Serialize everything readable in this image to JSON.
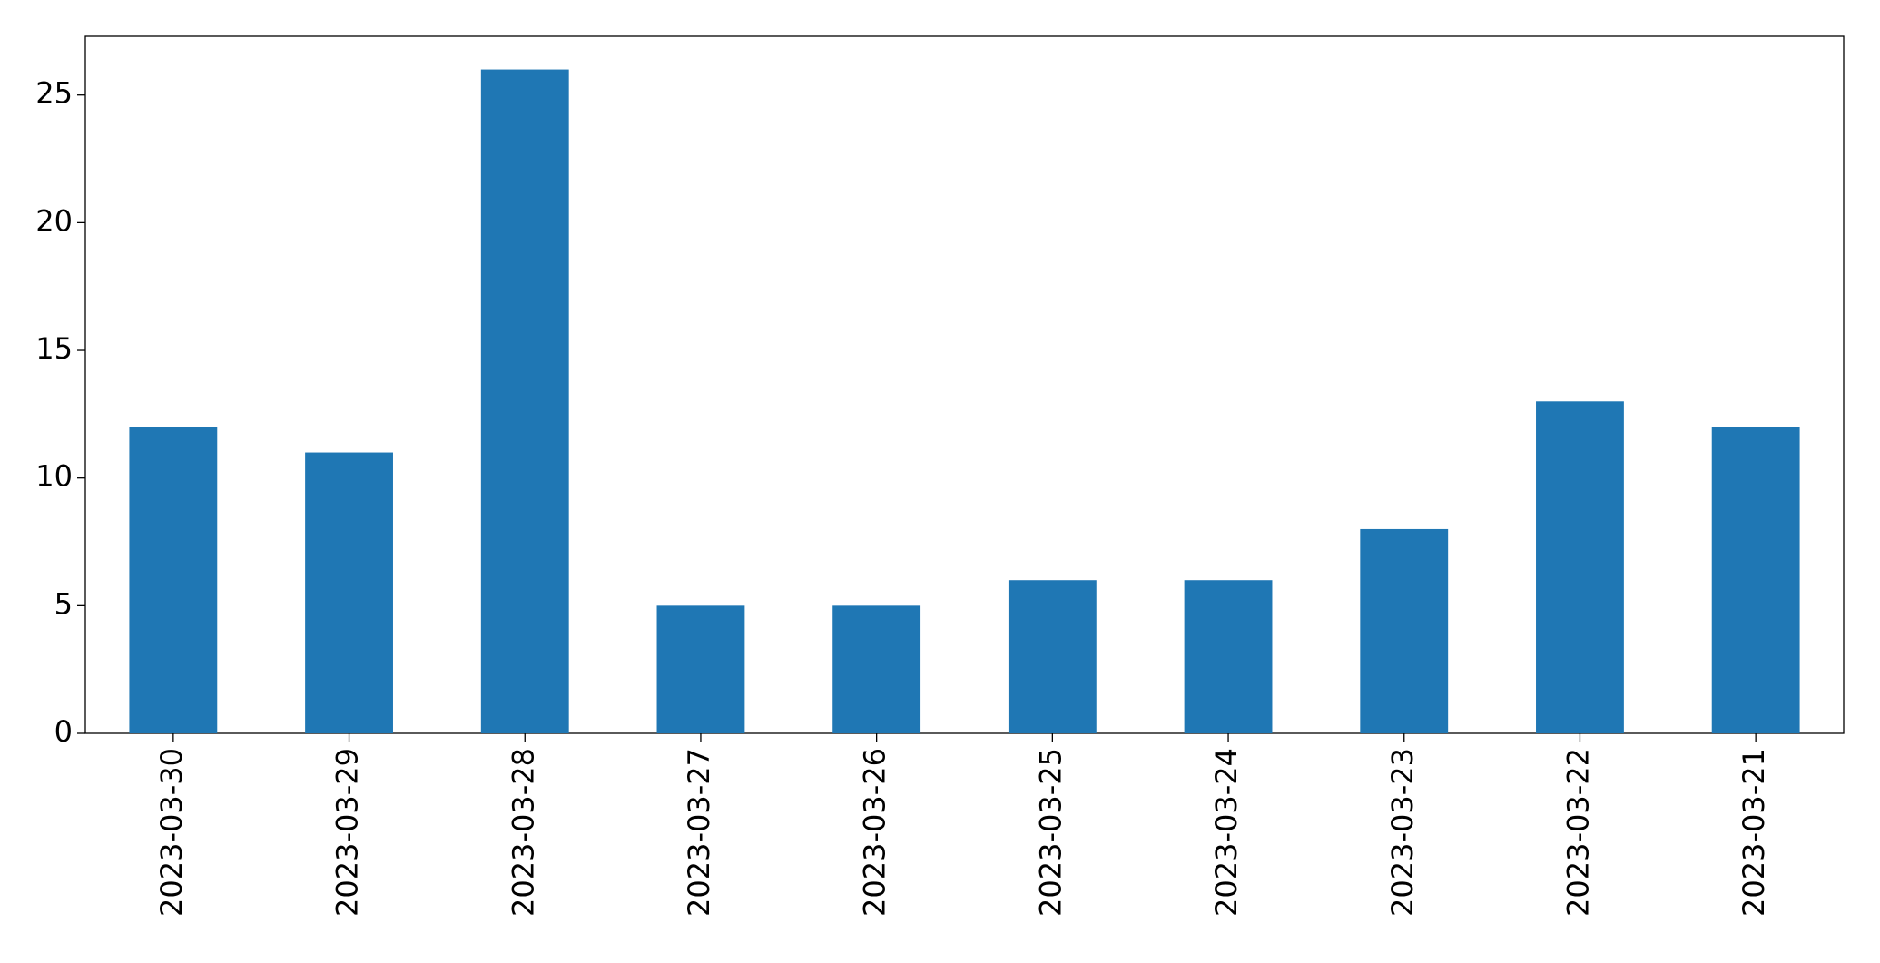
{
  "chart_data": {
    "type": "bar",
    "categories": [
      "2023-03-30",
      "2023-03-29",
      "2023-03-28",
      "2023-03-27",
      "2023-03-26",
      "2023-03-25",
      "2023-03-24",
      "2023-03-23",
      "2023-03-22",
      "2023-03-21"
    ],
    "values": [
      12,
      11,
      26,
      5,
      5,
      6,
      6,
      8,
      13,
      12
    ],
    "color": "#1f77b4",
    "ylim": [
      0,
      27.3
    ],
    "yticks": [
      0,
      5,
      10,
      15,
      20,
      25
    ],
    "grid": false
  }
}
